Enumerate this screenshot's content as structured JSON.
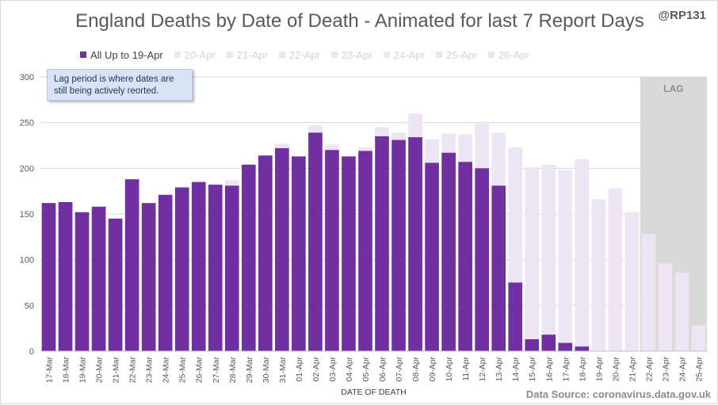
{
  "header": {
    "title": "England Deaths by Date of Death - Animated for last 7 Report Days",
    "handle": "@RP131"
  },
  "note": {
    "line1": "Lag period is where dates are",
    "line2": "still being actively reorted."
  },
  "lag_label": "LAG",
  "source": "Data Source: coronavirus.data.gov.uk",
  "chart_data": {
    "type": "bar",
    "stacked": true,
    "xlabel": "DATE OF DEATH",
    "ylabel": "",
    "ylim": [
      0,
      300
    ],
    "yticks": [
      0,
      50,
      100,
      150,
      200,
      250,
      300
    ],
    "grid": true,
    "legend_position": "top",
    "categories": [
      "17-Mar",
      "18-Mar",
      "19-Mar",
      "20-Mar",
      "21-Mar",
      "22-Mar",
      "23-Mar",
      "24-Mar",
      "25-Mar",
      "26-Mar",
      "27-Mar",
      "28-Mar",
      "29-Mar",
      "30-Mar",
      "31-Mar",
      "01-Apr",
      "02-Apr",
      "03-Apr",
      "04-Apr",
      "05-Apr",
      "06-Apr",
      "07-Apr",
      "08-Apr",
      "09-Apr",
      "10-Apr",
      "11-Apr",
      "12-Apr",
      "13-Apr",
      "14-Apr",
      "15-Apr",
      "16-Apr",
      "17-Apr",
      "18-Apr",
      "19-Apr",
      "20-Apr",
      "21-Apr",
      "22-Apr",
      "23-Apr",
      "24-Apr",
      "25-Apr"
    ],
    "values_up_to_19_apr": [
      162,
      163,
      152,
      158,
      145,
      188,
      162,
      171,
      179,
      185,
      182,
      181,
      204,
      214,
      222,
      213,
      239,
      220,
      213,
      219,
      235,
      231,
      234,
      206,
      217,
      207,
      200,
      181,
      75,
      13,
      18,
      9,
      5,
      0,
      0,
      0,
      0,
      0,
      0,
      0
    ],
    "totals_latest": [
      162,
      163,
      152,
      158,
      145,
      188,
      162,
      171,
      180,
      185,
      183,
      187,
      204,
      214,
      227,
      213,
      247,
      226,
      213,
      223,
      245,
      239,
      260,
      232,
      238,
      237,
      249,
      239,
      223,
      201,
      204,
      198,
      210,
      166,
      178,
      152,
      128,
      96,
      86,
      28
    ],
    "lag_start_category": "22-Apr",
    "series": [
      {
        "name": "All Up to 19-Apr",
        "color": "#7030a0"
      },
      {
        "name": "20-Apr",
        "color": "#ede4f4"
      },
      {
        "name": "21-Apr",
        "color": "#ede4f4"
      },
      {
        "name": "22-Apr",
        "color": "#ede4f4"
      },
      {
        "name": "23-Apr",
        "color": "#ede4f4"
      },
      {
        "name": "24-Apr",
        "color": "#ede4f4"
      },
      {
        "name": "25-Apr",
        "color": "#ede4f4"
      },
      {
        "name": "26-Apr",
        "color": "#ede4f4"
      }
    ],
    "lag_shade_color": "#d9d9d9"
  }
}
